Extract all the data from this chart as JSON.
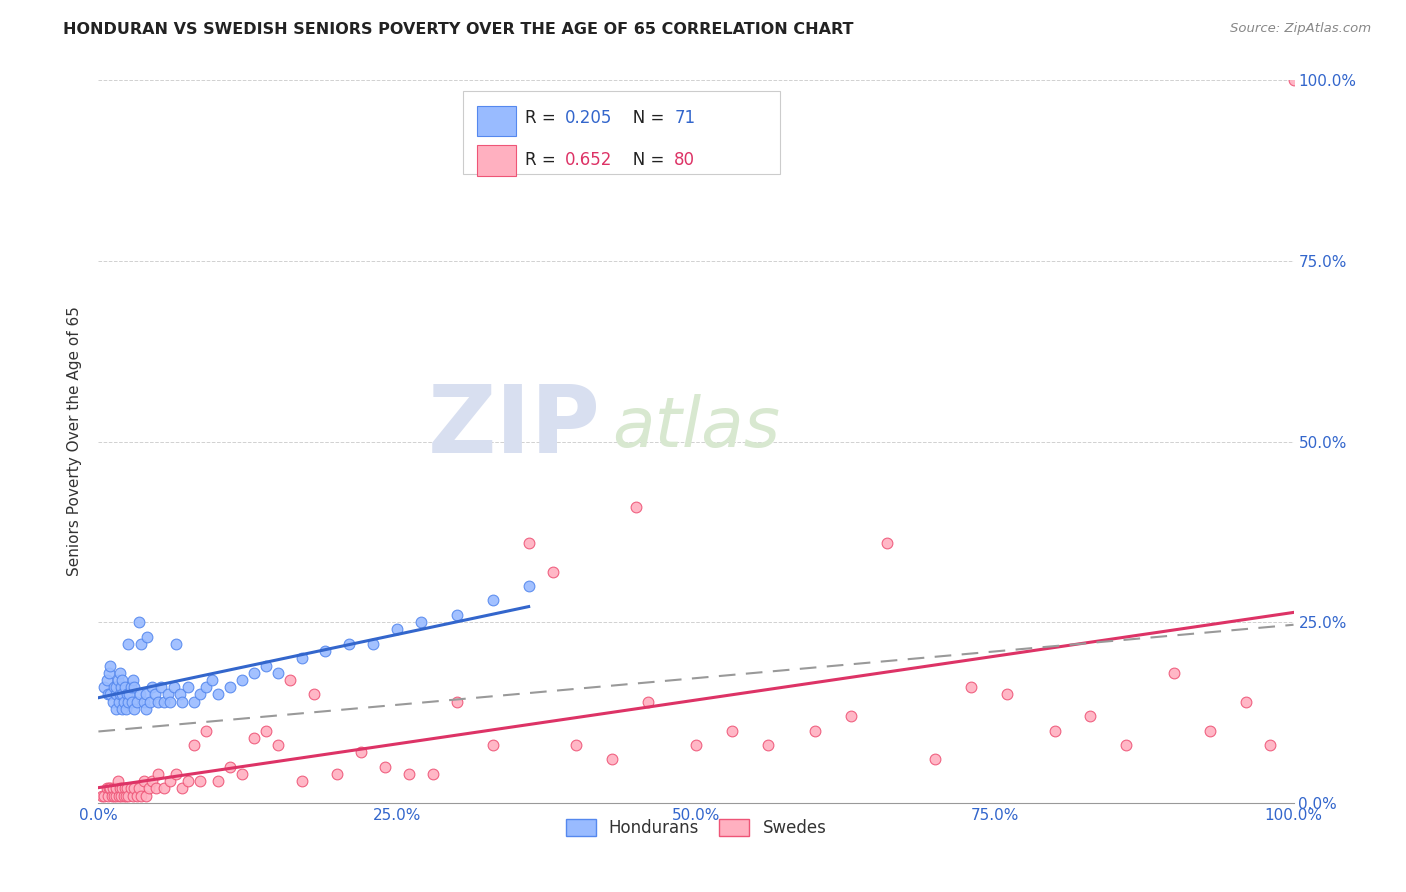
{
  "title": "HONDURAN VS SWEDISH SENIORS POVERTY OVER THE AGE OF 65 CORRELATION CHART",
  "source": "Source: ZipAtlas.com",
  "ylabel": "Seniors Poverty Over the Age of 65",
  "xlim": [
    0,
    1.0
  ],
  "ylim": [
    0,
    1.0
  ],
  "xticks": [
    0.0,
    0.25,
    0.5,
    0.75,
    1.0
  ],
  "yticks": [
    0.0,
    0.25,
    0.5,
    0.75,
    1.0
  ],
  "xticklabels": [
    "0.0%",
    "25.0%",
    "50.0%",
    "75.0%",
    "100.0%"
  ],
  "right_yticklabels": [
    "0.0%",
    "25.0%",
    "50.0%",
    "75.0%",
    "100.0%"
  ],
  "right_yticks": [
    0.0,
    0.25,
    0.5,
    0.75,
    1.0
  ],
  "honduran_color": "#99BBFF",
  "honduran_edge": "#5588EE",
  "swedish_color": "#FFB0C0",
  "swedish_edge": "#EE5577",
  "honduran_R": 0.205,
  "honduran_N": 71,
  "swedish_R": 0.652,
  "swedish_N": 80,
  "trend_honduran_color": "#3366CC",
  "trend_swedish_color": "#DD3366",
  "trend_dashed_color": "#999999",
  "watermark_zip": "ZIP",
  "watermark_atlas": "atlas",
  "legend_label_honduran": "Hondurans",
  "legend_label_swedish": "Swedes",
  "honduran_x": [
    0.005,
    0.007,
    0.008,
    0.009,
    0.01,
    0.01,
    0.012,
    0.013,
    0.015,
    0.015,
    0.015,
    0.016,
    0.017,
    0.018,
    0.018,
    0.019,
    0.02,
    0.02,
    0.02,
    0.021,
    0.022,
    0.023,
    0.024,
    0.025,
    0.025,
    0.026,
    0.027,
    0.028,
    0.029,
    0.03,
    0.03,
    0.032,
    0.034,
    0.035,
    0.036,
    0.038,
    0.04,
    0.04,
    0.041,
    0.043,
    0.045,
    0.047,
    0.05,
    0.052,
    0.055,
    0.058,
    0.06,
    0.063,
    0.065,
    0.068,
    0.07,
    0.075,
    0.08,
    0.085,
    0.09,
    0.095,
    0.1,
    0.11,
    0.12,
    0.13,
    0.14,
    0.15,
    0.17,
    0.19,
    0.21,
    0.23,
    0.25,
    0.27,
    0.3,
    0.33,
    0.36
  ],
  "honduran_y": [
    0.16,
    0.17,
    0.15,
    0.18,
    0.15,
    0.19,
    0.14,
    0.16,
    0.13,
    0.15,
    0.16,
    0.17,
    0.14,
    0.15,
    0.18,
    0.16,
    0.13,
    0.15,
    0.17,
    0.14,
    0.16,
    0.13,
    0.15,
    0.14,
    0.22,
    0.15,
    0.16,
    0.14,
    0.17,
    0.13,
    0.16,
    0.14,
    0.25,
    0.15,
    0.22,
    0.14,
    0.13,
    0.15,
    0.23,
    0.14,
    0.16,
    0.15,
    0.14,
    0.16,
    0.14,
    0.15,
    0.14,
    0.16,
    0.22,
    0.15,
    0.14,
    0.16,
    0.14,
    0.15,
    0.16,
    0.17,
    0.15,
    0.16,
    0.17,
    0.18,
    0.19,
    0.18,
    0.2,
    0.21,
    0.22,
    0.22,
    0.24,
    0.25,
    0.26,
    0.28,
    0.3
  ],
  "swedish_x": [
    0.003,
    0.005,
    0.007,
    0.008,
    0.009,
    0.01,
    0.011,
    0.012,
    0.013,
    0.015,
    0.015,
    0.016,
    0.017,
    0.018,
    0.019,
    0.02,
    0.021,
    0.022,
    0.023,
    0.024,
    0.025,
    0.027,
    0.029,
    0.03,
    0.032,
    0.034,
    0.036,
    0.038,
    0.04,
    0.042,
    0.045,
    0.048,
    0.05,
    0.055,
    0.06,
    0.065,
    0.07,
    0.075,
    0.08,
    0.085,
    0.09,
    0.1,
    0.11,
    0.12,
    0.13,
    0.14,
    0.15,
    0.16,
    0.17,
    0.18,
    0.2,
    0.22,
    0.24,
    0.26,
    0.28,
    0.3,
    0.33,
    0.36,
    0.4,
    0.43,
    0.46,
    0.5,
    0.53,
    0.56,
    0.6,
    0.63,
    0.66,
    0.7,
    0.73,
    0.76,
    0.8,
    0.83,
    0.86,
    0.9,
    0.93,
    0.96,
    0.98,
    1.0,
    0.45,
    0.38
  ],
  "swedish_y": [
    0.01,
    0.01,
    0.02,
    0.01,
    0.02,
    0.02,
    0.01,
    0.02,
    0.01,
    0.01,
    0.02,
    0.03,
    0.01,
    0.02,
    0.01,
    0.02,
    0.01,
    0.02,
    0.01,
    0.02,
    0.01,
    0.02,
    0.01,
    0.02,
    0.01,
    0.02,
    0.01,
    0.03,
    0.01,
    0.02,
    0.03,
    0.02,
    0.04,
    0.02,
    0.03,
    0.04,
    0.02,
    0.03,
    0.08,
    0.03,
    0.1,
    0.03,
    0.05,
    0.04,
    0.09,
    0.1,
    0.08,
    0.17,
    0.03,
    0.15,
    0.04,
    0.07,
    0.05,
    0.04,
    0.04,
    0.14,
    0.08,
    0.36,
    0.08,
    0.06,
    0.14,
    0.08,
    0.1,
    0.08,
    0.1,
    0.12,
    0.36,
    0.06,
    0.16,
    0.15,
    0.1,
    0.12,
    0.08,
    0.18,
    0.1,
    0.14,
    0.08,
    1.0,
    0.41,
    0.32
  ]
}
